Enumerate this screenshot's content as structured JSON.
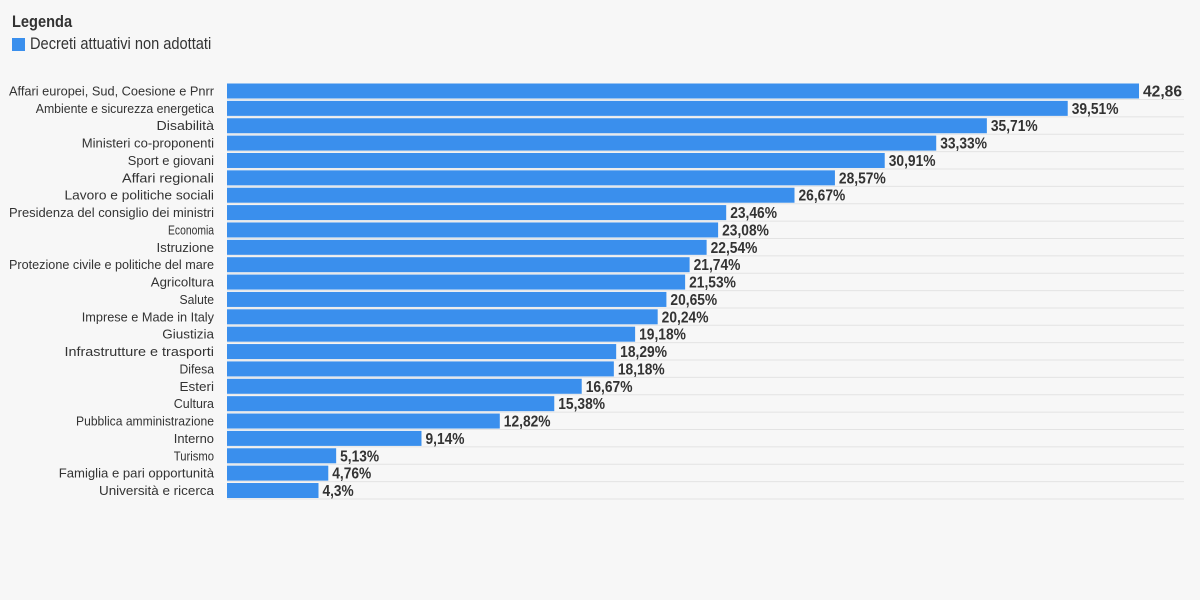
{
  "legend": {
    "title": "Legenda",
    "items": [
      {
        "label": "Decreti attuativi non adottati",
        "color": "#3a8fed"
      }
    ]
  },
  "colors": {
    "bar": "#3a8fed",
    "gridline": "#e3e3e3",
    "category_text": "#333333",
    "value_text": "#333333",
    "background": "#f7f7f7"
  },
  "chart_data": {
    "type": "bar",
    "orientation": "horizontal",
    "title": "",
    "xlabel": "",
    "ylabel": "",
    "xlim": [
      0,
      42.86
    ],
    "grid": true,
    "legend_position": "top-left",
    "categories": [
      "Affari europei, Sud, Coesione e Pnrr",
      "Ambiente e sicurezza energetica",
      "Disabilità",
      "Ministeri co-proponenti",
      "Sport e giovani",
      "Affari regionali",
      "Lavoro e politiche sociali",
      "Presidenza del consiglio dei ministri",
      "Economia",
      "Istruzione",
      "Protezione civile e politiche del mare",
      "Agricoltura",
      "Salute",
      "Imprese e Made in Italy",
      "Giustizia",
      "Infrastrutture e trasporti",
      "Difesa",
      "Esteri",
      "Cultura",
      "Pubblica amministrazione",
      "Interno",
      "Turismo",
      "Famiglia e pari opportunità",
      "Università e ricerca"
    ],
    "series": [
      {
        "name": "Decreti attuativi non adottati",
        "values": [
          42.86,
          39.51,
          35.71,
          33.33,
          30.91,
          28.57,
          26.67,
          23.46,
          23.08,
          22.54,
          21.74,
          21.53,
          20.65,
          20.24,
          19.18,
          18.29,
          18.18,
          16.67,
          15.38,
          12.82,
          9.14,
          5.13,
          4.76,
          4.3
        ],
        "value_labels": [
          "42,86",
          "39,51%",
          "35,71%",
          "33,33%",
          "30,91%",
          "28,57%",
          "26,67%",
          "23,46%",
          "23,08%",
          "22,54%",
          "21,74%",
          "21,53%",
          "20,65%",
          "20,24%",
          "19,18%",
          "18,29%",
          "18,18%",
          "16,67%",
          "15,38%",
          "12,82%",
          "9,14%",
          "5,13%",
          "4,76%",
          "4,3%"
        ]
      }
    ]
  }
}
